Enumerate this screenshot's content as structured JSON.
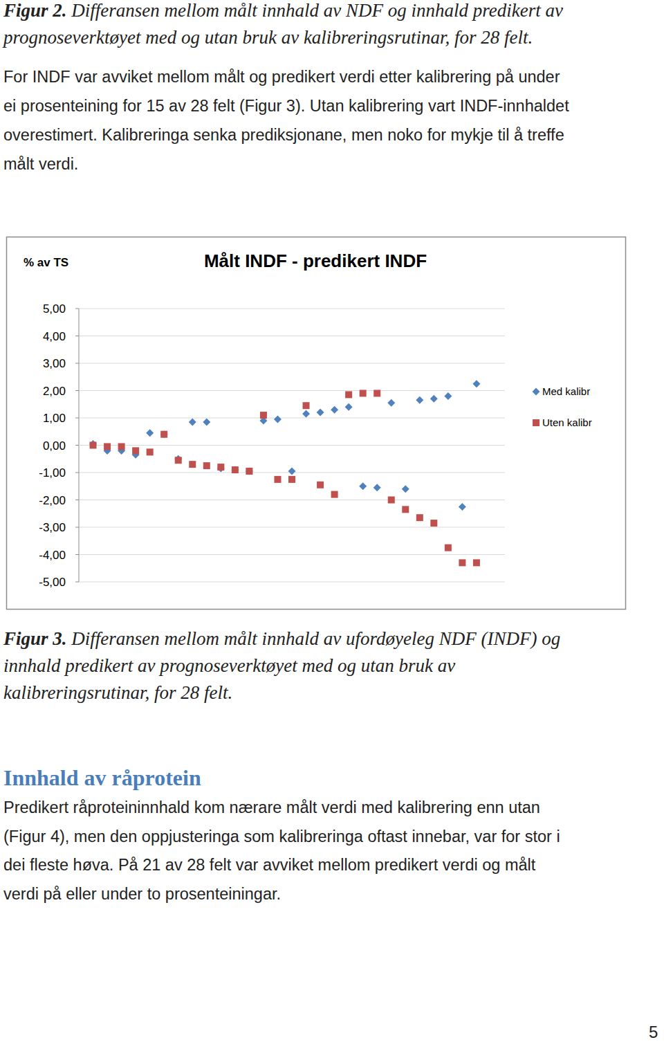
{
  "figure_2_caption": {
    "label": "Figur 2.",
    "lines": [
      " Differansen mellom målt innhald av NDF og innhald predikert av",
      "prognoseverktøyet med og utan bruk av kalibreringsrutinar, for 28 felt."
    ]
  },
  "paragraph_1": {
    "lines": [
      "For INDF var avviket mellom målt og predikert verdi etter kalibrering på under",
      "ei prosenteining for 15 av 28 felt (Figur 3). Utan kalibrering vart INDF-innhaldet",
      "overestimert. Kalibreringa senka prediksjonane, men noko for mykje til å treffe",
      "målt verdi."
    ]
  },
  "chart_data": {
    "type": "scatter",
    "title": "Målt INDF - predikert INDF",
    "y_label": "% av TS",
    "x": [
      1,
      2,
      3,
      4,
      5,
      6,
      7,
      8,
      9,
      10,
      11,
      12,
      13,
      14,
      15,
      16,
      17,
      18,
      19,
      20,
      21,
      22,
      23,
      24,
      25,
      26,
      27,
      28
    ],
    "xlim": [
      0,
      30
    ],
    "series": [
      {
        "name": "Med kalibr",
        "color": "#4f81bd",
        "marker": "diamond",
        "values": [
          0.05,
          -0.2,
          -0.2,
          -0.35,
          0.45,
          0.4,
          -0.5,
          0.85,
          0.85,
          -0.85,
          -0.9,
          -0.95,
          0.9,
          0.95,
          -0.95,
          1.15,
          1.2,
          1.3,
          1.4,
          -1.5,
          -1.55,
          1.55,
          -1.6,
          1.65,
          1.7,
          1.8,
          -2.25,
          2.25
        ]
      },
      {
        "name": "Uten kalibr",
        "color": "#c0504d",
        "marker": "square",
        "values": [
          0.0,
          -0.05,
          -0.05,
          -0.2,
          -0.25,
          0.4,
          -0.55,
          -0.7,
          -0.75,
          -0.8,
          -0.9,
          -0.95,
          1.1,
          -1.25,
          -1.25,
          1.45,
          -1.45,
          -1.8,
          1.85,
          1.9,
          1.9,
          -2.0,
          -2.35,
          -2.65,
          -2.85,
          -3.75,
          -4.3,
          -4.3
        ]
      }
    ],
    "ylim": [
      -5,
      5
    ],
    "yticks": [
      {
        "value": 5,
        "label": "5,00"
      },
      {
        "value": 4,
        "label": "4,00"
      },
      {
        "value": 3,
        "label": "3,00"
      },
      {
        "value": 2,
        "label": "2,00"
      },
      {
        "value": 1,
        "label": "1,00"
      },
      {
        "value": 0,
        "label": "0,00"
      },
      {
        "value": -1,
        "label": "-1,00"
      },
      {
        "value": -2,
        "label": "-2,00"
      },
      {
        "value": -3,
        "label": "-3,00"
      },
      {
        "value": -4,
        "label": "-4,00"
      },
      {
        "value": -5,
        "label": "-5,00"
      }
    ],
    "grid": true,
    "legend": "right",
    "tick_labels": "y"
  },
  "figure_3_caption": {
    "label": "Figur 3.",
    "lines": [
      " Differansen mellom målt innhald av ufordøyeleg NDF (INDF) og",
      "innhald predikert av prognoseverktøyet med og utan bruk av",
      "kalibreringsrutinar, for 28 felt."
    ]
  },
  "section": {
    "heading": "Innhald av råprotein",
    "lines": [
      "Predikert råproteininnhald kom nærare målt verdi med kalibrering enn utan",
      "(Figur 4), men den oppjusteringa som kalibreringa oftast innebar, var for stor i",
      "dei fleste høva. På 21 av 28 felt var avviket mellom predikert verdi og målt",
      "verdi på eller under to prosenteiningar."
    ]
  },
  "page_number": "5"
}
